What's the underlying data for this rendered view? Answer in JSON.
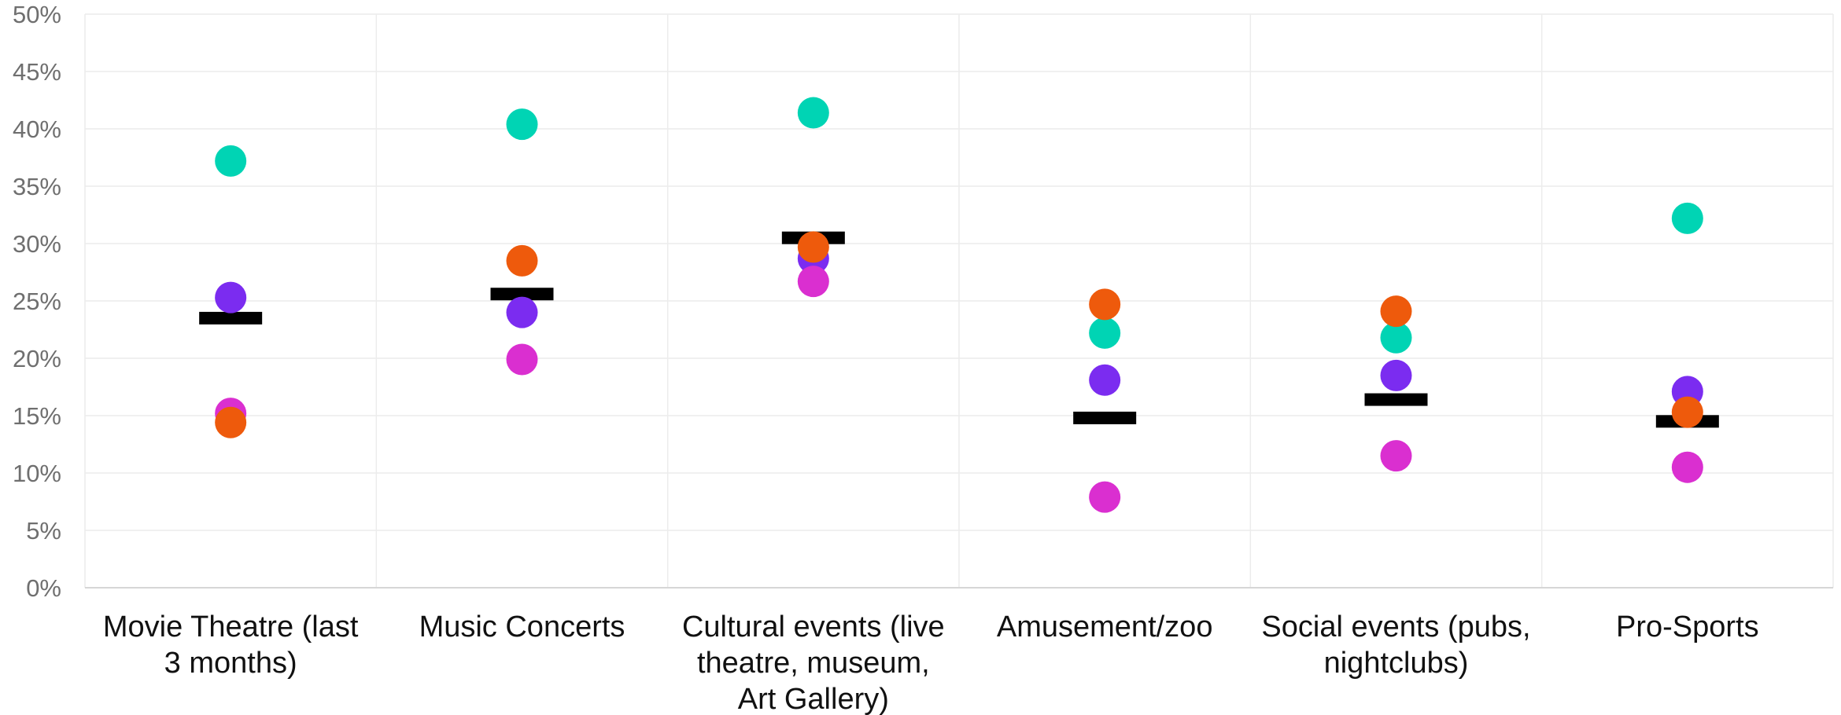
{
  "chart_data": {
    "type": "scatter",
    "title": "",
    "xlabel": "",
    "ylabel": "",
    "ylim": [
      0,
      50
    ],
    "yticks": [
      "0%",
      "5%",
      "10%",
      "15%",
      "20%",
      "25%",
      "30%",
      "35%",
      "40%",
      "45%",
      "50%"
    ],
    "categories": [
      [
        "Movie Theatre (last",
        "3 months)"
      ],
      [
        "Music Concerts"
      ],
      [
        "Cultural events (live",
        "theatre, museum,",
        "Art Gallery)"
      ],
      [
        "Amusement/zoo"
      ],
      [
        "Social events (pubs,",
        "nightclubs)"
      ],
      [
        "Pro-Sports"
      ]
    ],
    "grid": true,
    "legend": "none",
    "series": [
      {
        "color": "#00d4b4",
        "marker": "circle",
        "values": [
          37.2,
          40.4,
          41.4,
          22.2,
          21.8,
          32.2
        ]
      },
      {
        "color": "#7b2cf0",
        "marker": "circle",
        "values": [
          25.3,
          24.0,
          28.7,
          18.1,
          18.5,
          17.1
        ]
      },
      {
        "color": "#da2fd0",
        "marker": "circle",
        "values": [
          15.2,
          19.9,
          26.7,
          7.9,
          11.5,
          10.5
        ]
      },
      {
        "color": "#ee5a0c",
        "marker": "circle",
        "values": [
          14.4,
          28.5,
          29.7,
          24.7,
          24.1,
          15.3
        ]
      },
      {
        "color": "#000000",
        "marker": "dash",
        "values": [
          23.5,
          25.6,
          30.5,
          14.8,
          16.4,
          14.5
        ]
      }
    ],
    "colors": {
      "grid": "#ececec",
      "axis": "#d6d6d6",
      "tick_text": "#6f6f6f",
      "category_text": "#111111"
    }
  }
}
